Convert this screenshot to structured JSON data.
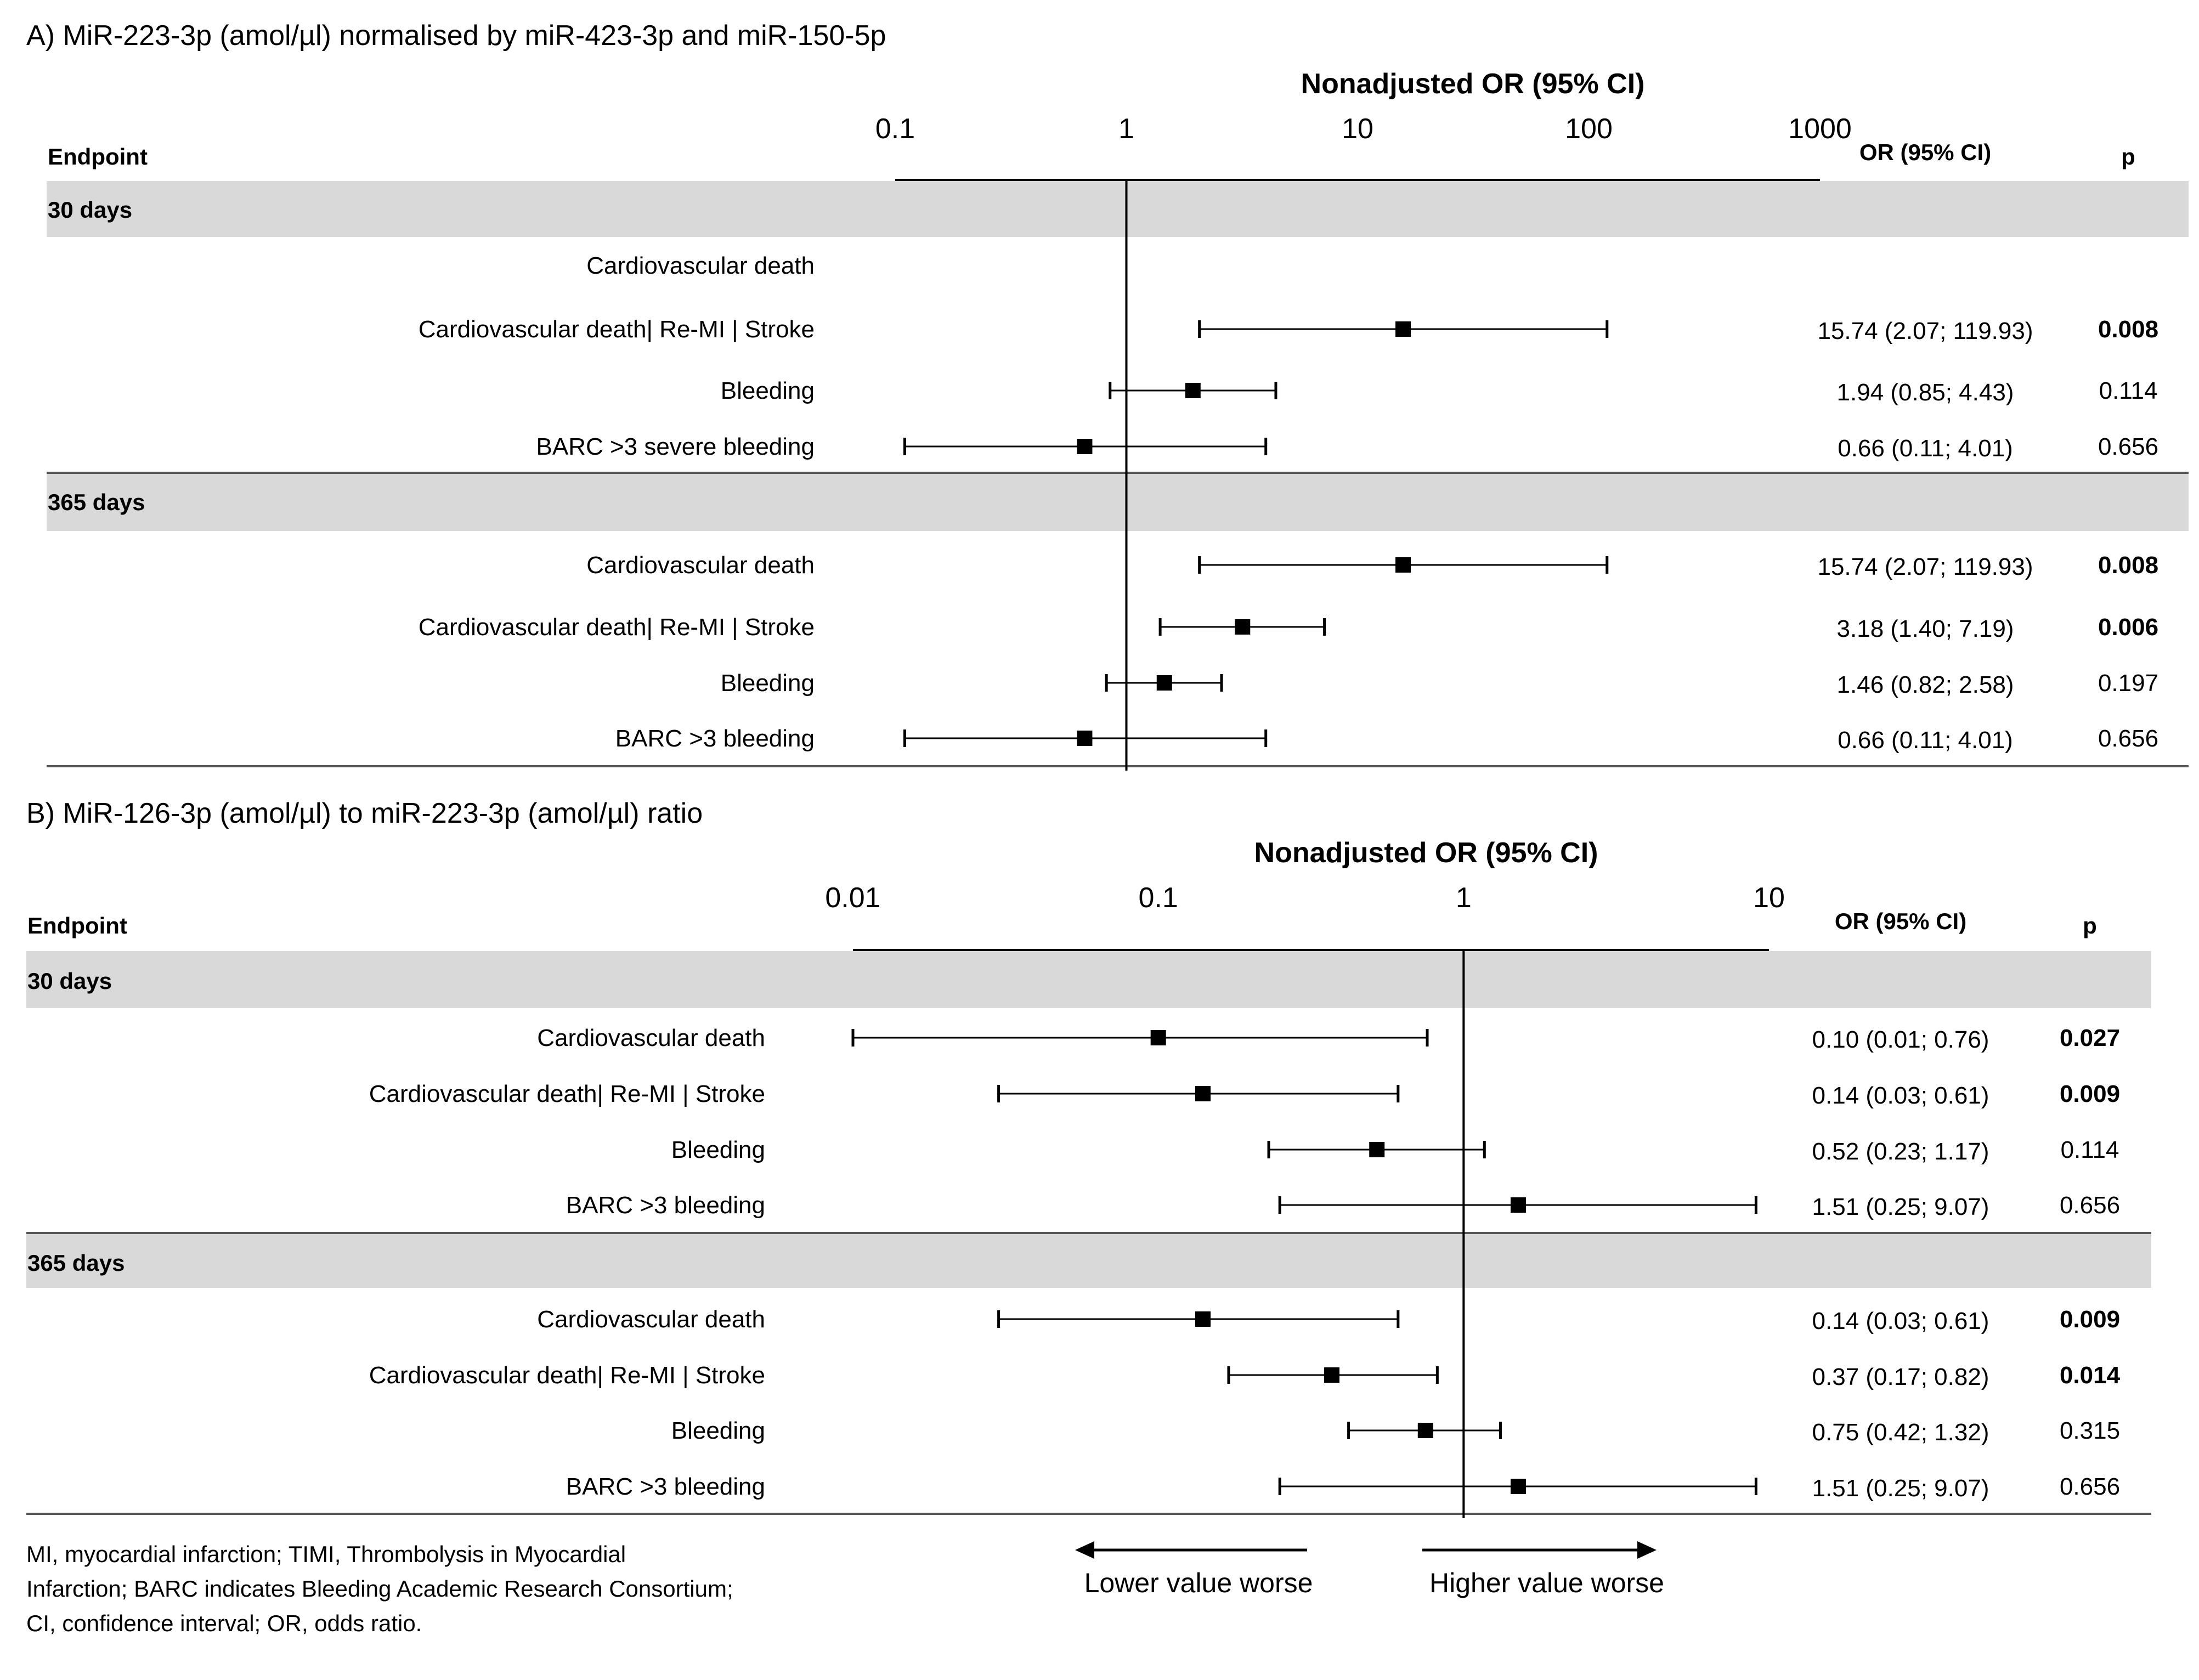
{
  "chart_data": [
    {
      "type": "forest",
      "title": "A) MiR-223-3p (amol/µl) normalised by miR-423-3p and miR-150-5p",
      "axis_title": "Nonadjusted OR (95% CI)",
      "xscale": "log",
      "xlim": [
        0.1,
        1000
      ],
      "ticks": [
        {
          "value": 0.1,
          "label": "0.1"
        },
        {
          "value": 1,
          "label": "1"
        },
        {
          "value": 10,
          "label": "10"
        },
        {
          "value": 100,
          "label": "100"
        },
        {
          "value": 1000,
          "label": "1000"
        }
      ],
      "reference_line": 1,
      "headers": {
        "endpoint": "Endpoint",
        "or": "OR (95% CI)",
        "p": "p"
      },
      "groups": [
        {
          "label": "30 days",
          "rows": [
            {
              "endpoint": "Cardiovascular death",
              "or": null,
              "lo": null,
              "hi": null,
              "or_text": "",
              "p": "",
              "significant": false
            },
            {
              "endpoint": "Cardiovascular death| Re-MI | Stroke",
              "or": 15.74,
              "lo": 2.07,
              "hi": 119.93,
              "or_text": "15.74 (2.07; 119.93)",
              "p": "0.008",
              "significant": true
            },
            {
              "endpoint": "Bleeding",
              "or": 1.94,
              "lo": 0.85,
              "hi": 4.43,
              "or_text": "1.94 (0.85; 4.43)",
              "p": "0.114",
              "significant": false
            },
            {
              "endpoint": "BARC >3 severe bleeding",
              "or": 0.66,
              "lo": 0.11,
              "hi": 4.01,
              "or_text": "0.66 (0.11; 4.01)",
              "p": "0.656",
              "significant": false
            }
          ]
        },
        {
          "label": "365 days",
          "rows": [
            {
              "endpoint": "Cardiovascular death",
              "or": 15.74,
              "lo": 2.07,
              "hi": 119.93,
              "or_text": "15.74 (2.07; 119.93)",
              "p": "0.008",
              "significant": true
            },
            {
              "endpoint": "Cardiovascular death| Re-MI | Stroke",
              "or": 3.18,
              "lo": 1.4,
              "hi": 7.19,
              "or_text": "3.18 (1.40; 7.19)",
              "p": "0.006",
              "significant": true
            },
            {
              "endpoint": "Bleeding",
              "or": 1.46,
              "lo": 0.82,
              "hi": 2.58,
              "or_text": "1.46 (0.82; 2.58)",
              "p": "0.197",
              "significant": false
            },
            {
              "endpoint": "BARC >3 bleeding",
              "or": 0.66,
              "lo": 0.11,
              "hi": 4.01,
              "or_text": "0.66 (0.11; 4.01)",
              "p": "0.656",
              "significant": false
            }
          ]
        }
      ]
    },
    {
      "type": "forest",
      "title": "B) MiR-126-3p (amol/µl) to miR-223-3p (amol/µl) ratio",
      "axis_title": "Nonadjusted OR (95% CI)",
      "xscale": "log",
      "xlim": [
        0.01,
        10
      ],
      "ticks": [
        {
          "value": 0.01,
          "label": "0.01"
        },
        {
          "value": 0.1,
          "label": "0.1"
        },
        {
          "value": 1,
          "label": "1"
        },
        {
          "value": 10,
          "label": "10"
        }
      ],
      "reference_line": 1,
      "headers": {
        "endpoint": "Endpoint",
        "or": "OR (95% CI)",
        "p": "p"
      },
      "groups": [
        {
          "label": "30 days",
          "rows": [
            {
              "endpoint": "Cardiovascular death",
              "or": 0.1,
              "lo": 0.01,
              "hi": 0.76,
              "or_text": "0.10 (0.01; 0.76)",
              "p": "0.027",
              "significant": true
            },
            {
              "endpoint": "Cardiovascular death| Re-MI | Stroke",
              "or": 0.14,
              "lo": 0.03,
              "hi": 0.61,
              "or_text": "0.14 (0.03; 0.61)",
              "p": "0.009",
              "significant": true
            },
            {
              "endpoint": "Bleeding",
              "or": 0.52,
              "lo": 0.23,
              "hi": 1.17,
              "or_text": "0.52 (0.23; 1.17)",
              "p": "0.114",
              "significant": false
            },
            {
              "endpoint": "BARC >3 bleeding",
              "or": 1.51,
              "lo": 0.25,
              "hi": 9.07,
              "or_text": "1.51 (0.25; 9.07)",
              "p": "0.656",
              "significant": false
            }
          ]
        },
        {
          "label": "365 days",
          "rows": [
            {
              "endpoint": "Cardiovascular death",
              "or": 0.14,
              "lo": 0.03,
              "hi": 0.61,
              "or_text": "0.14 (0.03; 0.61)",
              "p": "0.009",
              "significant": true
            },
            {
              "endpoint": "Cardiovascular death| Re-MI | Stroke",
              "or": 0.37,
              "lo": 0.17,
              "hi": 0.82,
              "or_text": "0.37 (0.17; 0.82)",
              "p": "0.014",
              "significant": true
            },
            {
              "endpoint": "Bleeding",
              "or": 0.75,
              "lo": 0.42,
              "hi": 1.32,
              "or_text": "0.75 (0.42; 1.32)",
              "p": "0.315",
              "significant": false
            },
            {
              "endpoint": "BARC >3 bleeding",
              "or": 1.51,
              "lo": 0.25,
              "hi": 9.07,
              "or_text": "1.51 (0.25; 9.07)",
              "p": "0.656",
              "significant": false
            }
          ]
        }
      ]
    }
  ],
  "footnote": [
    "MI, myocardial infarction; TIMI, Thrombolysis in Myocardial",
    "Infarction; BARC indicates Bleeding Academic Research Consortium;",
    "CI, confidence interval; OR, odds ratio."
  ],
  "direction": {
    "lower": "Lower value worse",
    "higher": "Higher value worse"
  },
  "colors": {
    "band": "#d9d9d9",
    "ink": "#000000",
    "rule": "#555555"
  }
}
